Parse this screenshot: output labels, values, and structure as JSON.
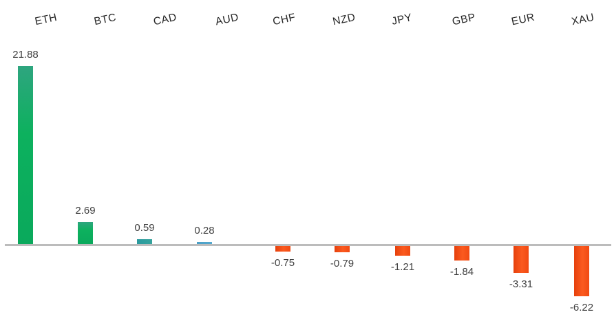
{
  "chart_data": {
    "type": "bar",
    "title": "",
    "xlabel": "",
    "ylabel": "",
    "categories": [
      "ETH",
      "BTC",
      "CAD",
      "AUD",
      "CHF",
      "NZD",
      "JPY",
      "GBP",
      "EUR",
      "XAU"
    ],
    "values": [
      21.88,
      2.69,
      0.59,
      0.28,
      -0.75,
      -0.79,
      -1.21,
      -1.84,
      -3.31,
      -6.22
    ],
    "value_labels": [
      "21.88",
      "2.69",
      "0.59",
      "0.28",
      "-0.75",
      "-0.79",
      "-1.21",
      "-1.84",
      "-3.31",
      "-6.22"
    ],
    "color_classes": [
      "green",
      "green",
      "teal",
      "blue",
      "orange",
      "orange",
      "orange",
      "orange",
      "orange",
      "orange"
    ],
    "colors": {
      "positive_green": "#0db15e",
      "positive_teal": "#2f9fa0",
      "positive_blue": "#4fa4ca",
      "negative_orange": "#f4500f",
      "axis_line": "#bcbcbc",
      "value_label_text": "#3f3f3f",
      "category_label_text": "#262626"
    },
    "ylim": [
      -8,
      24
    ],
    "grid": false,
    "legend": false,
    "label_position": "outside-end",
    "category_axis_position": "top",
    "category_label_rotation_deg": -12
  }
}
